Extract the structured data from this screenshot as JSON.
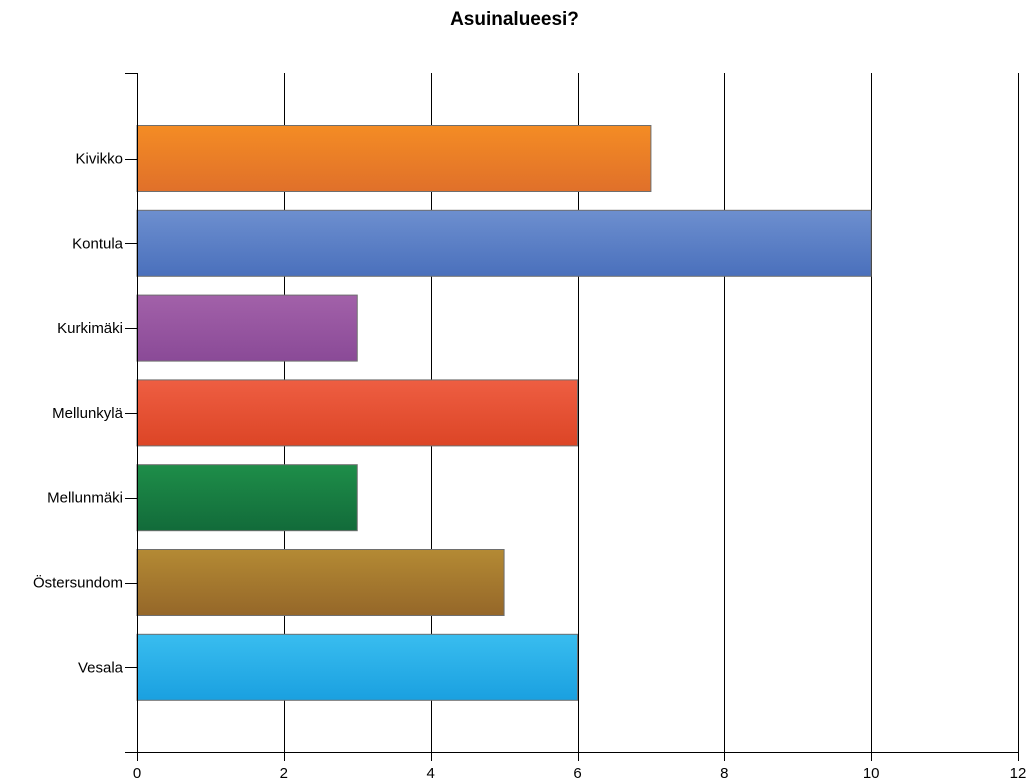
{
  "chart_data": {
    "type": "bar",
    "orientation": "horizontal",
    "title": "Asuinalueesi?",
    "xlabel": "",
    "ylabel": "",
    "xlim": [
      0,
      12
    ],
    "xticks": [
      0,
      2,
      4,
      6,
      8,
      10,
      12
    ],
    "grid": true,
    "categories": [
      "Kivikko",
      "Kontula",
      "Kurkimäki",
      "Mellunkylä",
      "Mellunmäki",
      "Östersundom",
      "Vesala"
    ],
    "values": [
      7,
      10,
      3,
      6,
      3,
      5,
      6
    ],
    "colors": [
      [
        "#f48c24",
        "#e0702a"
      ],
      [
        "#6d8fcf",
        "#4a70bc"
      ],
      [
        "#a261a9",
        "#8a4a97"
      ],
      [
        "#ee5e42",
        "#dc4526"
      ],
      [
        "#1e8e49",
        "#126b3a"
      ],
      [
        "#b48a34",
        "#956729"
      ],
      [
        "#39bdef",
        "#1aa0e0"
      ]
    ]
  }
}
